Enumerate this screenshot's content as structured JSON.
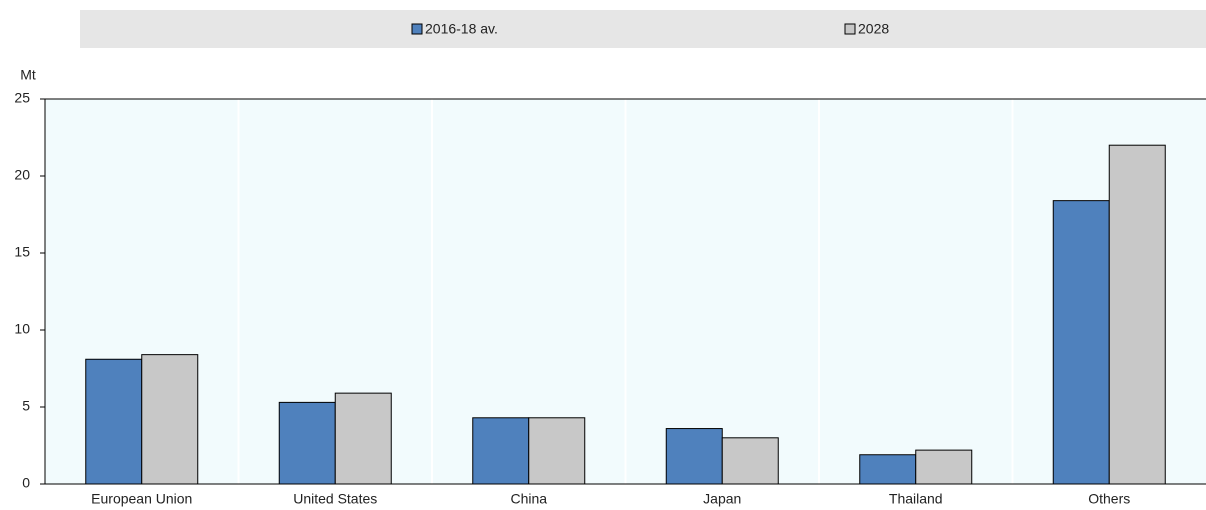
{
  "chart_data": {
    "type": "bar",
    "y_label": "Mt",
    "categories": [
      "European Union",
      "United States",
      "China",
      "Japan",
      "Thailand",
      "Others"
    ],
    "series": [
      {
        "name": "2016-18 av.",
        "color": "#4f81bd",
        "values": [
          8.1,
          5.3,
          4.3,
          3.6,
          1.9,
          18.4
        ]
      },
      {
        "name": "2028",
        "color": "#c8c8c8",
        "values": [
          8.4,
          5.9,
          4.3,
          3.0,
          2.2,
          22.0
        ]
      }
    ],
    "ylim": [
      0,
      25
    ],
    "yticks": [
      0,
      5,
      10,
      15,
      20,
      25
    ],
    "grid": true
  }
}
